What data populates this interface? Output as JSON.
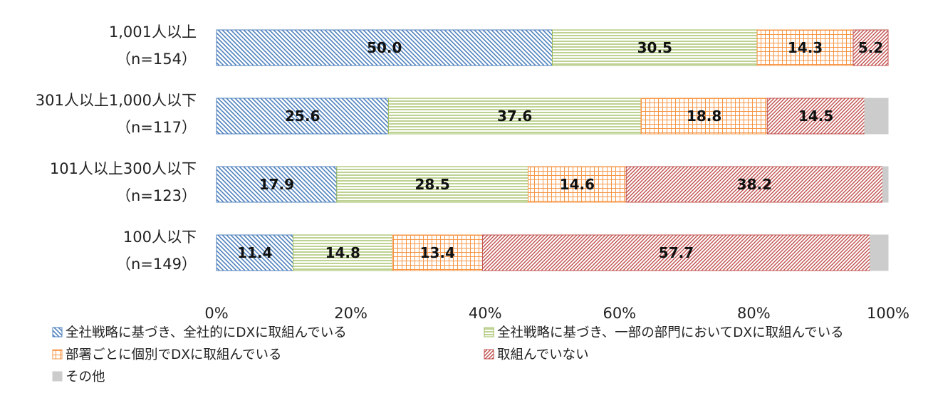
{
  "chart_data": {
    "type": "bar",
    "orientation": "horizontal",
    "stacked": "percent",
    "categories": [
      [
        "1,001人以上",
        "（n=154）"
      ],
      [
        "301人以上1,000人以下",
        "（n=117）"
      ],
      [
        "101人以上300人以下",
        "（n=123）"
      ],
      [
        "100人以下",
        "（n=149）"
      ]
    ],
    "series": [
      {
        "name": "全社戦略に基づき、全社的にDXに取組んでいる",
        "values": [
          50.0,
          25.6,
          17.9,
          11.4
        ],
        "labels": [
          "50.0",
          "25.6",
          "17.9",
          "11.4"
        ],
        "color": "#4f81bd"
      },
      {
        "name": "全社戦略に基づき、一部の部門においてDXに取組んでいる",
        "values": [
          30.5,
          37.6,
          28.5,
          14.8
        ],
        "labels": [
          "30.5",
          "37.6",
          "28.5",
          "14.8"
        ],
        "color": "#9bbb59"
      },
      {
        "name": "部署ごとに個別でDXに取組んでいる",
        "values": [
          14.3,
          18.8,
          14.6,
          13.4
        ],
        "labels": [
          "14.3",
          "18.8",
          "14.6",
          "13.4"
        ],
        "color": "#f79646"
      },
      {
        "name": "取組んでいない",
        "values": [
          5.2,
          14.5,
          38.2,
          57.7
        ],
        "labels": [
          "5.2",
          "14.5",
          "38.2",
          "57.7"
        ],
        "color": "#c0504d"
      },
      {
        "name": "その他",
        "values": [
          0.0,
          3.5,
          0.8,
          2.7
        ],
        "labels": [
          "",
          "",
          "",
          ""
        ],
        "color": "#c8c8c8"
      }
    ],
    "xlim": [
      0,
      100
    ],
    "xticks": [
      "0%",
      "20%",
      "40%",
      "60%",
      "80%",
      "100%"
    ],
    "grid": false,
    "legend_position": "bottom"
  }
}
